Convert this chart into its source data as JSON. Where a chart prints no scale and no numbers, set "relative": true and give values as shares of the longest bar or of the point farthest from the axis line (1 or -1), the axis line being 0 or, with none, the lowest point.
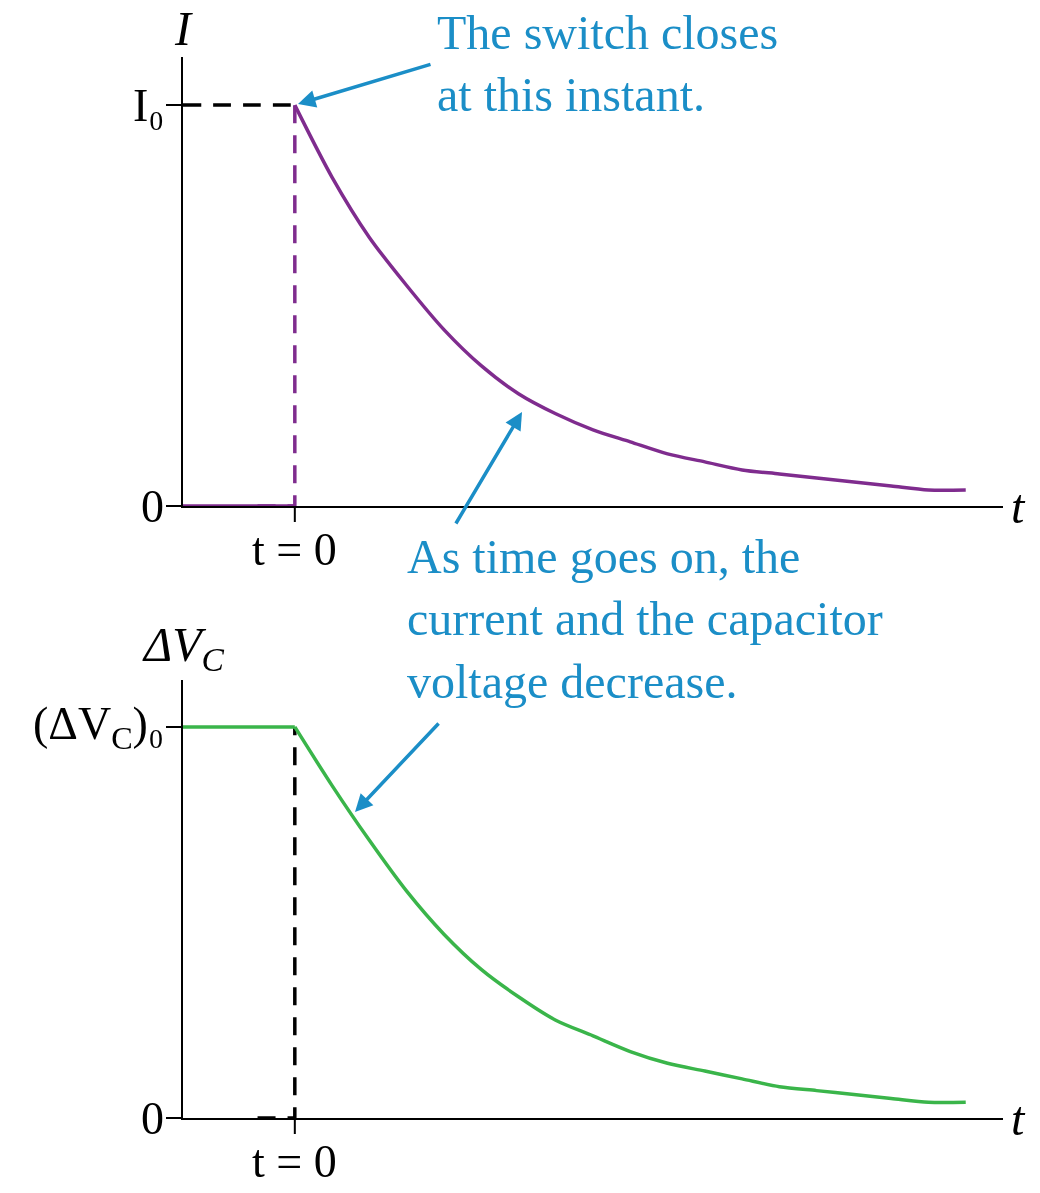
{
  "chart_data": [
    {
      "type": "line",
      "relative": true,
      "ylabel": "I",
      "xlabel": "t",
      "categories": [
        null,
        null,
        null,
        null,
        null,
        null,
        null,
        null,
        null,
        null,
        null,
        null,
        null,
        null,
        null,
        null,
        null,
        null,
        null,
        null,
        null,
        null,
        null
      ],
      "series": [
        {
          "color": "#000000",
          "line_style": "dashed",
          "values": [
            1,
            1,
            1,
            1,
            null,
            null,
            null,
            null,
            null,
            null,
            null,
            null,
            null,
            null,
            null,
            null,
            null,
            null,
            null,
            null,
            null,
            null,
            null
          ]
        },
        {
          "color": "#7f2c8e",
          "values": [
            0,
            0,
            0,
            0,
            null,
            null,
            null,
            null,
            null,
            null,
            null,
            null,
            null,
            null,
            null,
            null,
            null,
            null,
            null,
            null,
            null,
            null,
            null
          ]
        },
        {
          "type": "step",
          "color": "#7f2c8e",
          "line_style": "dashed",
          "values": [
            null,
            null,
            0,
            1,
            null,
            null,
            null,
            null,
            null,
            null,
            null,
            null,
            null,
            null,
            null,
            null,
            null,
            null,
            null,
            null,
            null,
            null,
            null
          ]
        },
        {
          "color": "#7f2c8e",
          "values": [
            null,
            null,
            null,
            1,
            0.82,
            0.67,
            0.55,
            0.44,
            0.35,
            0.28,
            0.23,
            0.19,
            0.16,
            0.13,
            0.11,
            0.09,
            0.08,
            0.07,
            0.06,
            0.05,
            0.04,
            0.04,
            null
          ]
        }
      ],
      "annotations": [
        "I₀",
        "0",
        "The switch closes\nat this instant.",
        "t = 0"
      ]
    },
    {
      "type": "line",
      "relative": true,
      "ylabel": "ΔV$_{C}$",
      "xlabel": "t",
      "categories": [
        null,
        null,
        null,
        null,
        null,
        null,
        null,
        null,
        null,
        null,
        null,
        null,
        null,
        null,
        null,
        null,
        null,
        null,
        null,
        null,
        null,
        null,
        null
      ],
      "series": [
        {
          "type": "step",
          "color": "#000000",
          "line_style": "dashed",
          "values": [
            null,
            null,
            0,
            1,
            null,
            null,
            null,
            null,
            null,
            null,
            null,
            null,
            null,
            null,
            null,
            null,
            null,
            null,
            null,
            null,
            null,
            null,
            null
          ]
        },
        {
          "color": "#3ab54a",
          "values": [
            1,
            1,
            1,
            1,
            null,
            null,
            null,
            null,
            null,
            null,
            null,
            null,
            null,
            null,
            null,
            null,
            null,
            null,
            null,
            null,
            null,
            null,
            null
          ]
        },
        {
          "color": "#3ab54a",
          "values": [
            null,
            null,
            null,
            1,
            0.85,
            0.71,
            0.58,
            0.47,
            0.38,
            0.31,
            0.25,
            0.21,
            0.17,
            0.14,
            0.12,
            0.1,
            0.08,
            0.07,
            0.06,
            0.05,
            0.04,
            0.04,
            null
          ]
        }
      ],
      "annotations": [
        "(ΔV$_{C}$)₀",
        "0",
        "As time goes on, the\ncurrent and the capacitor\nvoltage decrease.",
        "t = 0"
      ]
    }
  ]
}
